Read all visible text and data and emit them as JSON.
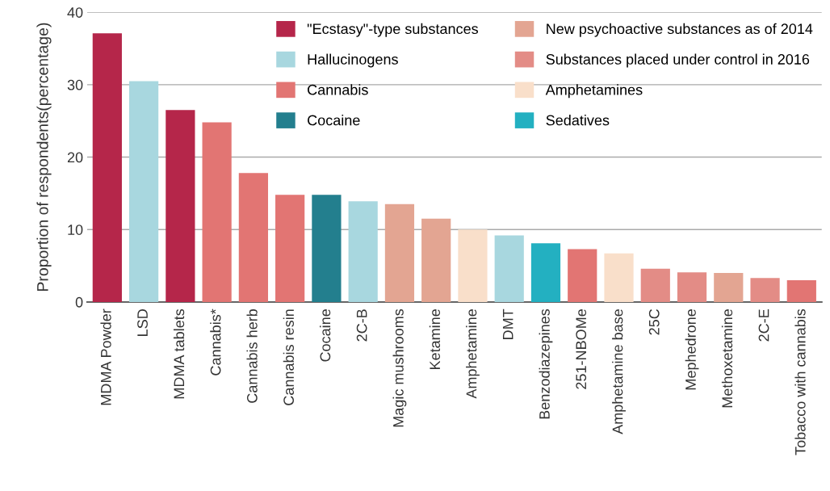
{
  "chart_data": {
    "type": "bar",
    "ylabel": "Proportion of respondents(percentage)",
    "categories": [
      "MDMA Powder",
      "LSD",
      "MDMA tablets",
      "Cannabis*",
      "Cannabis herb",
      "Cannabis resin",
      "Cocaine",
      "2C-B",
      "Magic mushrooms",
      "Ketamine",
      "Amphetamine",
      "DMT",
      "Benzodiazepines",
      "251-NBOMe",
      "Amphetamine base",
      "25C",
      "Mephedrone",
      "Methoxetamine",
      "2C-E",
      "Tobacco with cannabis"
    ],
    "series": [
      {
        "name": "\"Ecstasy\"-type substances",
        "color": "#b5264a",
        "values": [
          37.1,
          null,
          26.5,
          null,
          null,
          null,
          null,
          null,
          null,
          null,
          null,
          null,
          null,
          null,
          null,
          null,
          null,
          null,
          null,
          null
        ]
      },
      {
        "name": "Hallucinogens",
        "color": "#a8d7df",
        "values": [
          null,
          30.5,
          null,
          null,
          null,
          null,
          null,
          13.9,
          null,
          null,
          null,
          9.2,
          null,
          null,
          null,
          null,
          null,
          null,
          null,
          null
        ]
      },
      {
        "name": "Cannabis",
        "color": "#e27573",
        "values": [
          null,
          null,
          null,
          24.8,
          17.8,
          14.8,
          null,
          null,
          null,
          null,
          null,
          null,
          null,
          7.3,
          null,
          null,
          null,
          null,
          null,
          3.0
        ]
      },
      {
        "name": "Cocaine",
        "color": "#237f8e",
        "values": [
          null,
          null,
          null,
          null,
          null,
          null,
          14.8,
          null,
          null,
          null,
          null,
          null,
          null,
          null,
          null,
          null,
          null,
          null,
          null,
          null
        ]
      },
      {
        "name": "New psychoactive substances as of 2014",
        "color": "#e3a592",
        "values": [
          null,
          null,
          null,
          null,
          null,
          null,
          null,
          null,
          13.5,
          11.5,
          null,
          null,
          null,
          null,
          null,
          null,
          null,
          4.0,
          null,
          null
        ]
      },
      {
        "name": "Substances placed under control in 2016",
        "color": "#e38c86",
        "values": [
          null,
          null,
          null,
          null,
          null,
          null,
          null,
          null,
          null,
          null,
          null,
          null,
          null,
          null,
          null,
          4.6,
          4.1,
          null,
          3.3,
          null
        ]
      },
      {
        "name": "Amphetamines",
        "color": "#f9dfca",
        "values": [
          null,
          null,
          null,
          null,
          null,
          null,
          null,
          null,
          null,
          null,
          10.0,
          null,
          null,
          null,
          6.7,
          null,
          null,
          null,
          null,
          null
        ]
      },
      {
        "name": "Sedatives",
        "color": "#23b0c1",
        "values": [
          null,
          null,
          null,
          null,
          null,
          null,
          null,
          null,
          null,
          null,
          null,
          null,
          8.1,
          null,
          null,
          null,
          null,
          null,
          null,
          null
        ]
      }
    ],
    "ylim": [
      0,
      40
    ],
    "yticks": [
      0,
      10,
      20,
      30,
      40
    ],
    "grid": "y",
    "legend": "top right"
  }
}
